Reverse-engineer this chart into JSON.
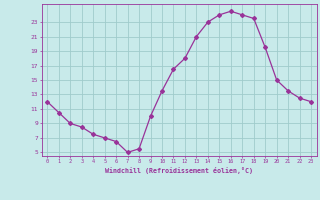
{
  "x": [
    0,
    1,
    2,
    3,
    4,
    5,
    6,
    7,
    8,
    9,
    10,
    11,
    12,
    13,
    14,
    15,
    16,
    17,
    18,
    19,
    20,
    21,
    22,
    23
  ],
  "y": [
    12.0,
    10.5,
    9.0,
    8.5,
    7.5,
    7.0,
    6.5,
    5.0,
    5.5,
    10.0,
    13.5,
    16.5,
    18.0,
    21.0,
    23.0,
    24.0,
    24.5,
    24.0,
    23.5,
    19.5,
    15.0,
    13.5,
    12.5,
    12.0
  ],
  "line_color": "#993399",
  "marker": "D",
  "marker_size": 2,
  "bg_color": "#c8eaea",
  "grid_color": "#a0cccc",
  "xlabel": "Windchill (Refroidissement éolien,°C)",
  "xlabel_color": "#993399",
  "tick_color": "#993399",
  "yticks": [
    5,
    7,
    9,
    11,
    13,
    15,
    17,
    19,
    21,
    23
  ],
  "xticks": [
    0,
    1,
    2,
    3,
    4,
    5,
    6,
    7,
    8,
    9,
    10,
    11,
    12,
    13,
    14,
    15,
    16,
    17,
    18,
    19,
    20,
    21,
    22,
    23
  ],
  "ylim": [
    4.5,
    25.5
  ],
  "xlim": [
    -0.5,
    23.5
  ]
}
